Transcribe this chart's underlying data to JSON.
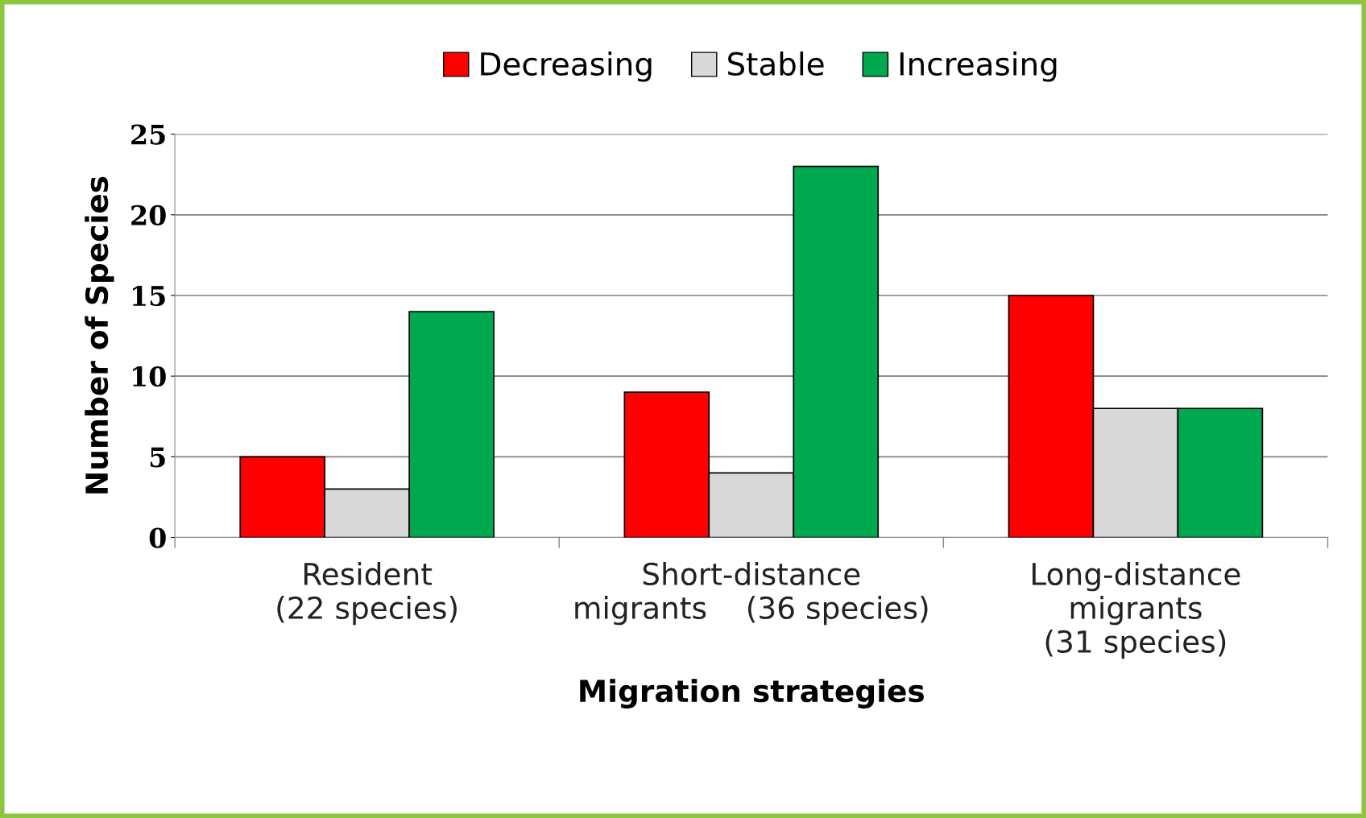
{
  "chart_data": {
    "type": "bar",
    "categories": [
      "Resident\n(22 species)",
      "Short-distance\nmigrants    (36 species)",
      "Long-distance\nmigrants\n(31 species)"
    ],
    "series": [
      {
        "name": "Decreasing",
        "color": "#ff0000",
        "values": [
          5,
          9,
          15
        ]
      },
      {
        "name": "Stable",
        "color": "#d9d9d9",
        "values": [
          3,
          4,
          8
        ]
      },
      {
        "name": "Increasing",
        "color": "#00a84f",
        "values": [
          14,
          23,
          8
        ]
      }
    ],
    "xlabel": "Migration strategies",
    "ylabel": "Number of Species",
    "ylim": [
      0,
      25
    ],
    "yticks": [
      0,
      5,
      10,
      15,
      20,
      25
    ],
    "grid": "y",
    "legend": "top"
  }
}
